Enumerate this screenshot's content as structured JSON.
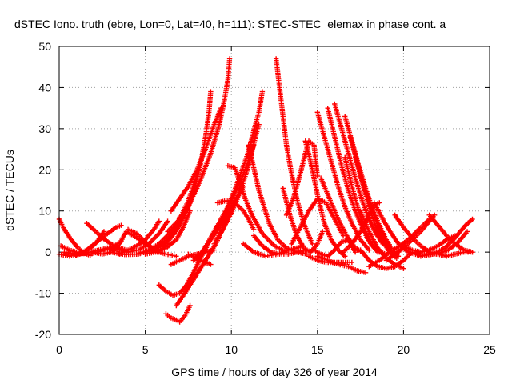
{
  "chart_data": {
    "type": "scatter",
    "title": "dSTEC Iono. truth (ebre, Lon=0, Lat=40, h=111): STEC-STEC_elemax in phase cont. a",
    "xlabel": "GPS time / hours of day 326 of year 2014",
    "ylabel": "dSTEC  / TECUs",
    "xlim": [
      0,
      25
    ],
    "ylim": [
      -20,
      50
    ],
    "x_ticks": [
      0,
      5,
      10,
      15,
      20,
      25
    ],
    "y_ticks": [
      -20,
      -10,
      0,
      10,
      20,
      30,
      40,
      50
    ],
    "grid": true,
    "marker": "+",
    "color": "#ff0000",
    "series": [
      {
        "x": [
          0.0,
          0.3,
          0.7,
          1.1,
          1.5,
          1.8
        ],
        "y": [
          8.0,
          5.5,
          3.0,
          1.0,
          -0.3,
          -0.8
        ]
      },
      {
        "x": [
          0.0,
          0.6,
          1.2,
          1.7,
          2.2,
          2.6
        ],
        "y": [
          -0.5,
          -1.0,
          -0.5,
          0.5,
          2.5,
          5.0
        ]
      },
      {
        "x": [
          0.1,
          0.6,
          1.2,
          1.8,
          2.5,
          3.2,
          3.6
        ],
        "y": [
          1.5,
          0.5,
          -0.3,
          -0.5,
          0.3,
          1.5,
          2.5
        ]
      },
      {
        "x": [
          0.3,
          0.9,
          1.5,
          2.1,
          2.8,
          3.4,
          3.8
        ],
        "y": [
          0.0,
          -0.5,
          -0.3,
          0.3,
          1.0,
          0.8,
          0.3
        ]
      },
      {
        "x": [
          1.0,
          1.6,
          2.2,
          2.8,
          3.3,
          3.6
        ],
        "y": [
          -0.8,
          0.5,
          2.5,
          4.5,
          6.0,
          6.5
        ]
      },
      {
        "x": [
          1.6,
          2.0,
          2.5,
          3.0,
          3.5,
          3.9
        ],
        "y": [
          7.0,
          5.5,
          3.5,
          2.0,
          1.0,
          0.5
        ]
      },
      {
        "x": [
          2.0,
          2.5,
          3.0,
          3.5,
          3.9,
          4.5,
          5.2,
          5.7
        ],
        "y": [
          0.0,
          -0.5,
          0.0,
          2.0,
          5.0,
          3.5,
          1.5,
          0.0
        ]
      },
      {
        "x": [
          2.5,
          3.0,
          3.5,
          4.0,
          4.6,
          5.2,
          5.8,
          6.3
        ],
        "y": [
          0.5,
          1.0,
          0.5,
          0.0,
          0.5,
          2.0,
          4.5,
          7.5
        ]
      },
      {
        "x": [
          3.5,
          4.0,
          4.5,
          5.0,
          5.5,
          5.8
        ],
        "y": [
          -0.5,
          0.5,
          1.5,
          3.0,
          5.5,
          7.5
        ]
      },
      {
        "x": [
          3.0,
          3.8,
          4.6,
          5.4,
          6.2,
          6.8,
          7.0
        ],
        "y": [
          0.0,
          -0.6,
          -0.5,
          0.5,
          2.5,
          5.5,
          8.5
        ]
      },
      {
        "x": [
          4.0,
          4.5,
          5.0,
          5.4,
          5.8,
          6.2,
          6.8
        ],
        "y": [
          5.5,
          4.5,
          2.5,
          1.0,
          0.0,
          -0.5,
          -1.0
        ]
      },
      {
        "x": [
          4.5,
          5.2,
          5.8,
          6.4,
          7.0,
          7.5,
          7.8,
          8.0
        ],
        "y": [
          -0.5,
          0.5,
          2.0,
          4.5,
          7.5,
          11.0,
          14.0,
          15.5
        ]
      },
      {
        "x": [
          5.0,
          5.6,
          6.2,
          6.8,
          7.2,
          7.6
        ],
        "y": [
          -0.5,
          0.0,
          1.0,
          3.0,
          6.0,
          10.0
        ]
      },
      {
        "x": [
          5.5,
          6.0,
          6.5,
          7.0,
          7.4,
          7.8,
          8.2,
          8.5,
          8.7,
          8.8
        ],
        "y": [
          0.0,
          1.0,
          3.5,
          6.5,
          10.0,
          15.0,
          21.0,
          28.0,
          34.0,
          39.0
        ]
      },
      {
        "x": [
          6.0,
          6.5,
          7.0,
          7.5,
          7.8,
          8.0
        ],
        "y": [
          1.5,
          4.0,
          8.0,
          12.5,
          16.0,
          18.5
        ]
      },
      {
        "x": [
          6.3,
          7.0,
          7.6,
          8.2,
          8.8,
          9.3,
          9.6,
          9.8,
          9.9
        ],
        "y": [
          5.0,
          8.0,
          12.0,
          17.5,
          24.0,
          31.0,
          37.0,
          42.0,
          47.0
        ]
      },
      {
        "x": [
          6.5,
          7.0,
          7.5,
          8.0,
          8.5,
          9.0,
          9.4
        ],
        "y": [
          10.0,
          13.0,
          16.0,
          20.0,
          25.0,
          31.0,
          35.0
        ]
      },
      {
        "x": [
          5.8,
          6.2,
          6.6,
          7.0,
          7.4,
          7.8,
          8.2,
          8.6
        ],
        "y": [
          -8.0,
          -9.5,
          -10.5,
          -10.0,
          -8.0,
          -5.0,
          -1.5,
          1.5
        ]
      },
      {
        "x": [
          6.2,
          6.5,
          6.8,
          7.0,
          7.3,
          7.6
        ],
        "y": [
          -15.0,
          -16.0,
          -16.5,
          -17.0,
          -15.5,
          -13.0
        ]
      },
      {
        "x": [
          6.8,
          7.3,
          7.9,
          8.5,
          9.1,
          9.6,
          10.1
        ],
        "y": [
          -13.0,
          -10.0,
          -6.0,
          -2.0,
          2.0,
          6.5,
          11.0
        ]
      },
      {
        "x": [
          6.5,
          7.0,
          7.5,
          8.0,
          8.5,
          9.0
        ],
        "y": [
          -3.0,
          -2.0,
          -1.0,
          -0.5,
          0.0,
          0.5
        ]
      },
      {
        "x": [
          7.5,
          8.0,
          8.5,
          8.8
        ],
        "y": [
          -0.5,
          -1.5,
          -2.5,
          -3.0
        ]
      },
      {
        "x": [
          7.8,
          8.3,
          8.8,
          9.3,
          9.8,
          10.3,
          10.7
        ],
        "y": [
          -2.0,
          0.0,
          3.0,
          6.0,
          9.5,
          13.0,
          16.0
        ]
      },
      {
        "x": [
          8.0,
          8.6,
          9.2,
          9.8,
          10.4,
          10.9,
          11.3
        ],
        "y": [
          -2.0,
          2.0,
          6.5,
          11.0,
          16.0,
          21.0,
          26.0
        ]
      },
      {
        "x": [
          9.0,
          9.5,
          10.0,
          10.5,
          11.0,
          11.4,
          11.6
        ],
        "y": [
          2.0,
          5.5,
          9.5,
          14.5,
          21.0,
          28.0,
          31.0
        ]
      },
      {
        "x": [
          9.5,
          10.0,
          10.5,
          11.0,
          11.3,
          11.6,
          11.8
        ],
        "y": [
          8.0,
          13.0,
          18.5,
          24.5,
          29.5,
          34.0,
          39.0
        ]
      },
      {
        "x": [
          9.2,
          9.7,
          10.2,
          10.7,
          11.0,
          11.3
        ],
        "y": [
          12.0,
          12.5,
          12.0,
          10.0,
          8.0,
          5.5
        ]
      },
      {
        "x": [
          9.8,
          10.2,
          10.5,
          10.8,
          11.2,
          11.8,
          12.5,
          13.2
        ],
        "y": [
          21.0,
          20.5,
          17.0,
          13.0,
          9.0,
          4.5,
          1.5,
          0.0
        ]
      },
      {
        "x": [
          11.0,
          11.6,
          12.2,
          12.7,
          13.2,
          13.8,
          14.4
        ],
        "y": [
          26.0,
          15.0,
          7.0,
          3.0,
          1.0,
          0.0,
          -0.5
        ]
      },
      {
        "x": [
          11.3,
          11.8,
          12.3,
          12.8,
          13.3,
          13.8,
          14.3
        ],
        "y": [
          4.0,
          1.5,
          0.0,
          -0.5,
          -0.5,
          0.0,
          0.5
        ]
      },
      {
        "x": [
          10.7,
          11.3,
          12.0,
          12.7,
          13.3,
          13.8,
          14.2
        ],
        "y": [
          2.0,
          0.0,
          -1.0,
          -0.5,
          0.5,
          1.0,
          1.5
        ]
      },
      {
        "x": [
          12.6,
          12.8,
          13.0,
          13.2,
          13.5,
          13.8,
          14.2,
          14.7
        ],
        "y": [
          47.0,
          40.0,
          33.0,
          26.0,
          19.0,
          13.0,
          7.0,
          2.0
        ]
      },
      {
        "x": [
          13.0,
          13.4,
          13.8,
          14.2,
          14.6,
          15.0,
          15.3
        ],
        "y": [
          15.5,
          9.0,
          4.0,
          1.0,
          0.0,
          2.0,
          5.0
        ]
      },
      {
        "x": [
          13.2,
          13.6,
          14.0,
          14.3,
          14.5,
          14.8,
          15.0
        ],
        "y": [
          9.0,
          13.0,
          19.0,
          24.0,
          27.0,
          26.0,
          18.5
        ]
      },
      {
        "x": [
          14.3,
          14.6,
          15.0,
          15.4,
          15.8,
          16.2,
          16.6
        ],
        "y": [
          27.0,
          22.0,
          14.0,
          7.0,
          3.0,
          0.5,
          -1.0
        ]
      },
      {
        "x": [
          13.5,
          14.0,
          14.5,
          15.0,
          15.5,
          16.0,
          16.5
        ],
        "y": [
          2.0,
          6.0,
          10.0,
          13.0,
          12.0,
          8.0,
          4.0
        ]
      },
      {
        "x": [
          14.5,
          15.0,
          15.5,
          16.0,
          16.5,
          17.0
        ],
        "y": [
          -1.0,
          -2.0,
          -2.5,
          -2.5,
          -2.5,
          -2.5
        ]
      },
      {
        "x": [
          15.0,
          15.6,
          16.2,
          16.8,
          17.3,
          17.8
        ],
        "y": [
          -1.0,
          -2.0,
          -3.0,
          -3.5,
          -4.5,
          -5.0
        ]
      },
      {
        "x": [
          14.8,
          15.2,
          15.6,
          16.0,
          16.4,
          16.8,
          17.2
        ],
        "y": [
          0.5,
          -0.5,
          -1.0,
          0.5,
          2.5,
          3.0,
          0.0
        ]
      },
      {
        "x": [
          15.0,
          15.4,
          15.8,
          16.2,
          16.6,
          17.0,
          17.5,
          18.0
        ],
        "y": [
          34.0,
          28.0,
          22.0,
          16.0,
          11.0,
          7.0,
          3.0,
          0.5
        ]
      },
      {
        "x": [
          15.6,
          16.0,
          16.4,
          16.8,
          17.2,
          17.6,
          18.0,
          18.5
        ],
        "y": [
          35.0,
          28.0,
          21.0,
          15.0,
          10.0,
          6.0,
          2.5,
          0.0
        ]
      },
      {
        "x": [
          16.0,
          16.4,
          16.8,
          17.2,
          17.6,
          18.0,
          18.4,
          18.8
        ],
        "y": [
          36.0,
          30.0,
          24.0,
          18.0,
          12.5,
          8.0,
          4.5,
          2.0
        ]
      },
      {
        "x": [
          16.6,
          17.0,
          17.4,
          17.8,
          18.2,
          18.6,
          19.0,
          19.3
        ],
        "y": [
          33.0,
          27.0,
          21.0,
          15.5,
          10.5,
          6.5,
          3.0,
          1.0
        ]
      },
      {
        "x": [
          16.9,
          17.3,
          17.7,
          18.1,
          18.5,
          18.9,
          19.3,
          19.7
        ],
        "y": [
          28.0,
          22.0,
          16.0,
          11.0,
          6.5,
          3.0,
          0.5,
          -1.0
        ]
      },
      {
        "x": [
          15.2,
          15.7,
          16.2,
          16.7,
          17.2,
          17.6
        ],
        "y": [
          18.0,
          13.0,
          8.0,
          4.0,
          1.0,
          0.0
        ]
      },
      {
        "x": [
          16.6,
          17.0,
          17.4,
          17.8,
          18.2,
          18.6,
          19.0
        ],
        "y": [
          23.0,
          16.0,
          10.0,
          5.0,
          1.5,
          0.0,
          -0.5
        ]
      },
      {
        "x": [
          17.2,
          17.6,
          18.0,
          18.4,
          18.8,
          19.2,
          19.6
        ],
        "y": [
          23.0,
          17.0,
          11.0,
          6.0,
          2.5,
          0.0,
          -1.5
        ]
      },
      {
        "x": [
          17.5,
          18.0,
          18.5,
          19.0,
          19.5,
          20.0
        ],
        "y": [
          10.0,
          5.0,
          1.0,
          -1.5,
          -3.0,
          -4.0
        ]
      },
      {
        "x": [
          17.5,
          18.0,
          18.5,
          19.0,
          19.5,
          20.0,
          20.5
        ],
        "y": [
          0.5,
          -2.0,
          -3.5,
          -4.0,
          -3.5,
          -2.0,
          0.0
        ]
      },
      {
        "x": [
          16.5,
          17.0,
          17.5,
          18.0,
          18.3,
          18.6
        ],
        "y": [
          0.0,
          2.0,
          5.0,
          9.0,
          11.5,
          12.0
        ]
      },
      {
        "x": [
          18.3,
          18.8,
          19.3,
          19.8,
          20.3,
          20.9
        ],
        "y": [
          12.0,
          8.0,
          4.5,
          1.5,
          0.0,
          -0.8
        ]
      },
      {
        "x": [
          18.0,
          18.6,
          19.2,
          19.8,
          20.4,
          21.0,
          21.5
        ],
        "y": [
          -3.5,
          -2.0,
          0.0,
          1.5,
          3.5,
          6.0,
          8.0
        ]
      },
      {
        "x": [
          19.0,
          19.5,
          20.0,
          20.5,
          21.0,
          21.5,
          21.8
        ],
        "y": [
          -2.0,
          -0.5,
          1.0,
          3.0,
          5.0,
          7.5,
          9.0
        ]
      },
      {
        "x": [
          19.5,
          20.0,
          20.5,
          21.0,
          21.5,
          22.0
        ],
        "y": [
          9.0,
          6.0,
          3.5,
          1.5,
          0.0,
          -0.5
        ]
      },
      {
        "x": [
          20.0,
          20.5,
          21.0,
          21.5,
          22.0,
          22.5,
          23.0
        ],
        "y": [
          1.5,
          0.5,
          0.0,
          0.5,
          1.5,
          3.0,
          4.0
        ]
      },
      {
        "x": [
          21.5,
          22.0,
          22.5,
          23.0,
          23.5,
          24.0
        ],
        "y": [
          9.0,
          6.5,
          4.0,
          2.0,
          0.5,
          0.0
        ]
      },
      {
        "x": [
          20.5,
          21.2,
          21.9,
          22.6,
          23.2,
          23.7
        ],
        "y": [
          0.0,
          -0.5,
          -0.5,
          0.5,
          2.5,
          5.0
        ]
      },
      {
        "x": [
          21.0,
          21.7,
          22.4,
          23.0,
          23.6,
          24.0
        ],
        "y": [
          -1.0,
          -0.5,
          1.0,
          3.5,
          6.5,
          8.0
        ]
      },
      {
        "x": [
          22.0,
          22.5,
          23.0,
          23.5,
          24.0
        ],
        "y": [
          -0.5,
          -1.0,
          -0.5,
          0.0,
          0.0
        ]
      }
    ]
  }
}
